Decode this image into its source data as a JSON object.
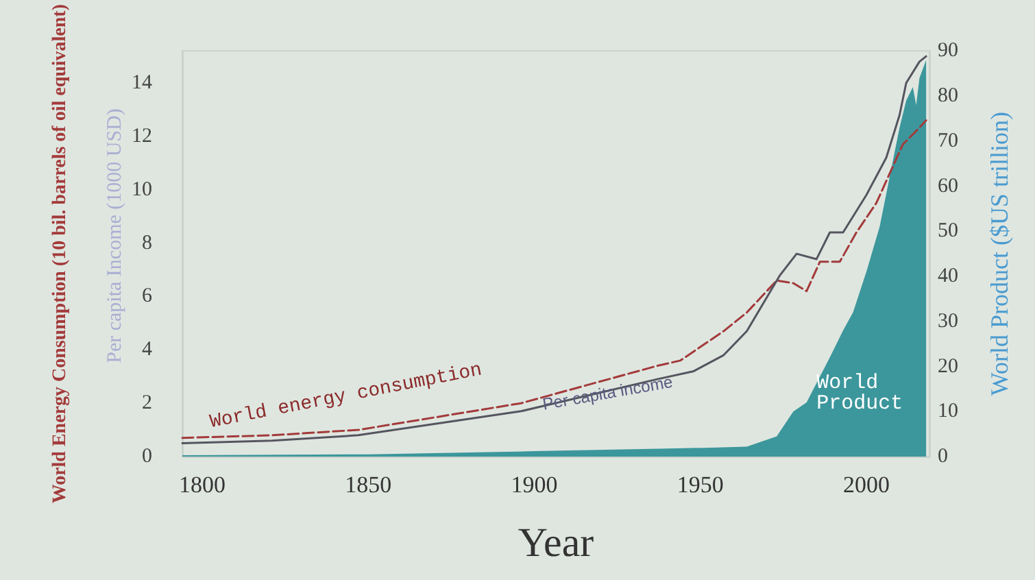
{
  "chart_data": {
    "type": "line",
    "xlabel": "Year",
    "ylabel": "World Energy Consumption (10 bil. barrels of oil equivalent)",
    "y2label": "World Product ($US trillion)",
    "annotations": [
      "Per capita Income (1000 USD)"
    ],
    "xlim": [
      1794,
      2019
    ],
    "xticks": [
      1800,
      1850,
      1900,
      1950,
      2000
    ],
    "ylim": [
      0,
      15.2
    ],
    "yticks": [
      0,
      2,
      4,
      6,
      8,
      10,
      12,
      14
    ],
    "y2lim": [
      0,
      90
    ],
    "y2ticks": [
      0,
      10,
      20,
      30,
      40,
      50,
      60,
      70,
      80,
      90
    ],
    "grid": false,
    "legend": false,
    "marker": "none",
    "series": [
      {
        "name": "World energy consumption",
        "color": "#a33a3a",
        "line_style": "dashed",
        "x": [
          1794,
          1821,
          1847,
          1896,
          1937,
          1944,
          1957,
          1964,
          1973,
          1978,
          1982,
          1986,
          1992,
          1997,
          2003,
          2007,
          2011,
          2015,
          2018
        ],
        "values": [
          0.7,
          0.8,
          1.0,
          2.0,
          3.4,
          3.6,
          4.7,
          5.4,
          6.6,
          6.5,
          6.2,
          7.3,
          7.3,
          8.4,
          9.5,
          10.6,
          11.7,
          12.2,
          12.6
        ]
      },
      {
        "name": "Per capita income",
        "color": "#55555f",
        "line_style": "solid",
        "x": [
          1794,
          1821,
          1847,
          1896,
          1937,
          1948,
          1957,
          1964,
          1974,
          1979,
          1985,
          1989,
          1993,
          2000,
          2006,
          2010,
          2012,
          2016,
          2018
        ],
        "values": [
          0.5,
          0.6,
          0.8,
          1.7,
          2.9,
          3.2,
          3.8,
          4.7,
          6.8,
          7.6,
          7.4,
          8.4,
          8.4,
          9.8,
          11.2,
          12.8,
          14.0,
          14.8,
          15.0
        ]
      },
      {
        "name": "World Product",
        "type": "area",
        "axis": "y2",
        "color": "#3c979c",
        "x": [
          1794,
          1850,
          1900,
          1940,
          1955,
          1964,
          1973,
          1978,
          1982,
          1989,
          1993,
          1996,
          2000,
          2004,
          2007,
          2010,
          2012,
          2014,
          2015,
          2016,
          2018
        ],
        "values": [
          0.3,
          0.5,
          1.2,
          1.8,
          2.0,
          2.2,
          4.5,
          10,
          12,
          22,
          28,
          32,
          41,
          51,
          62,
          73,
          79,
          82,
          78,
          84,
          88
        ]
      }
    ]
  }
}
